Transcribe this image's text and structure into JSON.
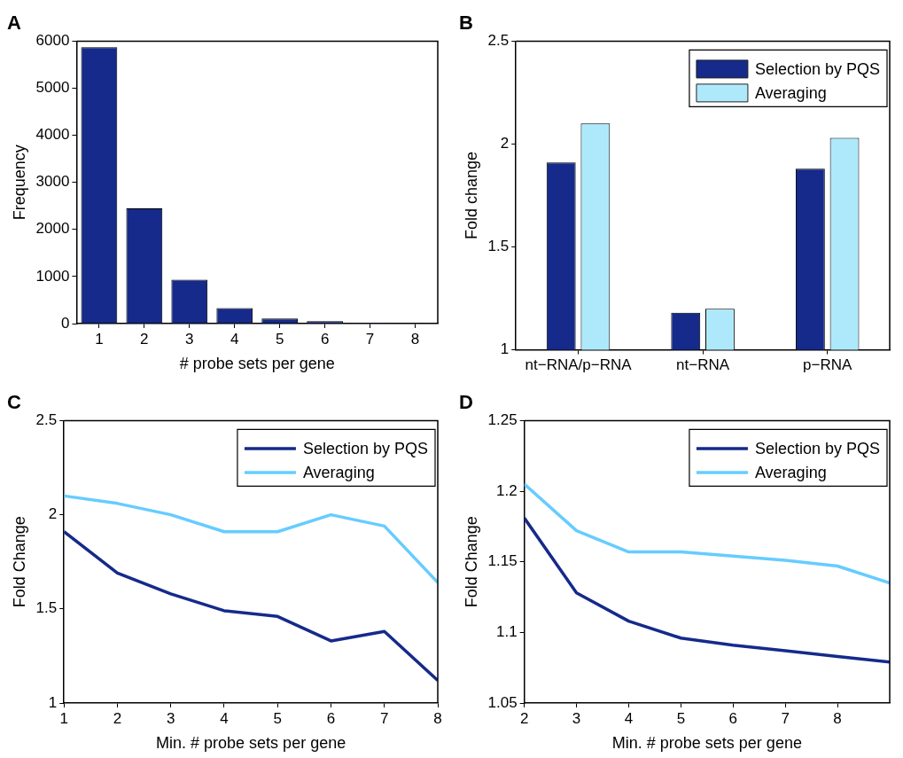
{
  "chart_data": [
    {
      "type": "bar",
      "title": "A",
      "xlabel": "# probe sets per gene",
      "ylabel": "Frequency",
      "categories": [
        "1",
        "2",
        "3",
        "4",
        "5",
        "6",
        "7",
        "8"
      ],
      "values": [
        5870,
        2450,
        930,
        330,
        110,
        50,
        20,
        10
      ],
      "color": "#152a8a",
      "ylim": [
        0,
        6000
      ],
      "yticks": [
        0,
        1000,
        2000,
        3000,
        4000,
        5000,
        6000
      ]
    },
    {
      "type": "bar",
      "title": "B",
      "ylabel": "Fold change",
      "categories": [
        "nt−RNA/p−RNA",
        "nt−RNA",
        "p−RNA"
      ],
      "series": [
        {
          "name": "Selection by PQS",
          "color": "#152a8a",
          "values": [
            1.91,
            1.18,
            1.88
          ]
        },
        {
          "name": "Averaging",
          "color": "#aee9fb",
          "values": [
            2.1,
            1.2,
            2.03
          ]
        }
      ],
      "ylim": [
        1,
        2.5
      ],
      "yticks": [
        1,
        1.5,
        2,
        2.5
      ],
      "legend": "top right"
    },
    {
      "type": "line",
      "title": "C",
      "xlabel": "Min. # probe sets per gene",
      "ylabel": "Fold Change",
      "x": [
        1,
        2,
        3,
        4,
        5,
        6,
        7,
        8
      ],
      "series": [
        {
          "name": "Selection by PQS",
          "color": "#152a8a",
          "values": [
            1.91,
            1.69,
            1.58,
            1.49,
            1.46,
            1.33,
            1.38,
            1.12
          ]
        },
        {
          "name": "Averaging",
          "color": "#66ccff",
          "values": [
            2.1,
            2.06,
            2.0,
            1.91,
            1.91,
            2.0,
            1.94,
            1.64
          ]
        }
      ],
      "xlim": [
        1,
        8
      ],
      "xticks": [
        1,
        2,
        3,
        4,
        5,
        6,
        7,
        8
      ],
      "ylim": [
        1,
        2.5
      ],
      "yticks": [
        1,
        1.5,
        2,
        2.5
      ],
      "legend": "top right"
    },
    {
      "type": "line",
      "title": "D",
      "xlabel": "Min. # probe sets per gene",
      "ylabel": "Fold Change",
      "x": [
        2,
        3,
        4,
        5,
        6,
        7,
        8,
        9
      ],
      "series": [
        {
          "name": "Selection by PQS",
          "color": "#152a8a",
          "values": [
            1.181,
            1.128,
            1.108,
            1.096,
            1.091,
            1.087,
            1.083,
            1.079
          ]
        },
        {
          "name": "Averaging",
          "color": "#66ccff",
          "values": [
            1.205,
            1.172,
            1.157,
            1.157,
            1.154,
            1.151,
            1.147,
            1.135
          ]
        }
      ],
      "xlim": [
        2,
        9
      ],
      "xticks": [
        2,
        3,
        4,
        5,
        6,
        7,
        8
      ],
      "ylim": [
        1.05,
        1.25
      ],
      "yticks": [
        1.05,
        1.1,
        1.15,
        1.2,
        1.25
      ],
      "legend": "top right"
    }
  ]
}
